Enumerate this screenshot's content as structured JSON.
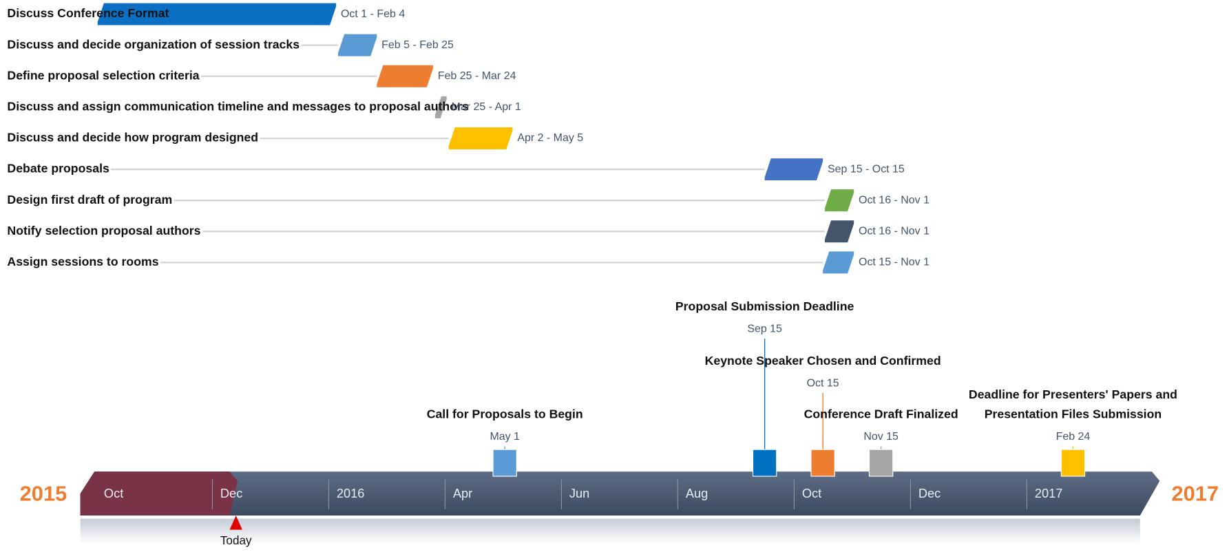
{
  "tasks": [
    {
      "label": "Discuss Conference Format",
      "dates": "Oct 1 - Feb 4",
      "color": "#0b6fc4"
    },
    {
      "label": "Discuss and decide organization of session tracks",
      "dates": "Feb 5 - Feb 25",
      "color": "#5b9bd5"
    },
    {
      "label": "Define proposal selection criteria",
      "dates": "Feb 25 - Mar 24",
      "color": "#ed7d31"
    },
    {
      "label": "Discuss and assign communication timeline and messages to proposal authors",
      "dates": "Mar 25 - Apr 1",
      "color": "#a5a5a5"
    },
    {
      "label": "Discuss and decide how program designed",
      "dates": "Apr 2 - May 5",
      "color": "#ffc000"
    },
    {
      "label": "Debate proposals",
      "dates": "Sep 15 - Oct 15",
      "color": "#4472c4"
    },
    {
      "label": "Design first draft of program",
      "dates": "Oct 16 - Nov 1",
      "color": "#70ad47"
    },
    {
      "label": "Notify selection proposal authors",
      "dates": "Oct 16 - Nov 1",
      "color": "#44546a"
    },
    {
      "label": "Assign sessions to rooms",
      "dates": "Oct 15 - Nov 1",
      "color": "#5b9bd5"
    }
  ],
  "milestones": [
    {
      "title": [
        "Call for Proposals to Begin"
      ],
      "date": "May 1",
      "color": "#5b9bd5"
    },
    {
      "title": [
        "Proposal Submission Deadline"
      ],
      "date": "Sep 15",
      "color": "#0070c0"
    },
    {
      "title": [
        "Keynote Speaker Chosen and Confirmed"
      ],
      "date": "Oct 15",
      "color": "#ed7d31"
    },
    {
      "title": [
        "Conference Draft Finalized"
      ],
      "date": "Nov 15",
      "color": "#a5a5a5"
    },
    {
      "title": [
        "Deadline for Presenters' Papers and",
        "Presentation Files Submission"
      ],
      "date": "Feb 24",
      "color": "#ffc000"
    }
  ],
  "timeline": {
    "start_year": "2015",
    "end_year": "2017",
    "labels": [
      "Oct",
      "Dec",
      "2016",
      "Apr",
      "Jun",
      "Aug",
      "Oct",
      "Dec",
      "2017"
    ],
    "today": "Today"
  }
}
